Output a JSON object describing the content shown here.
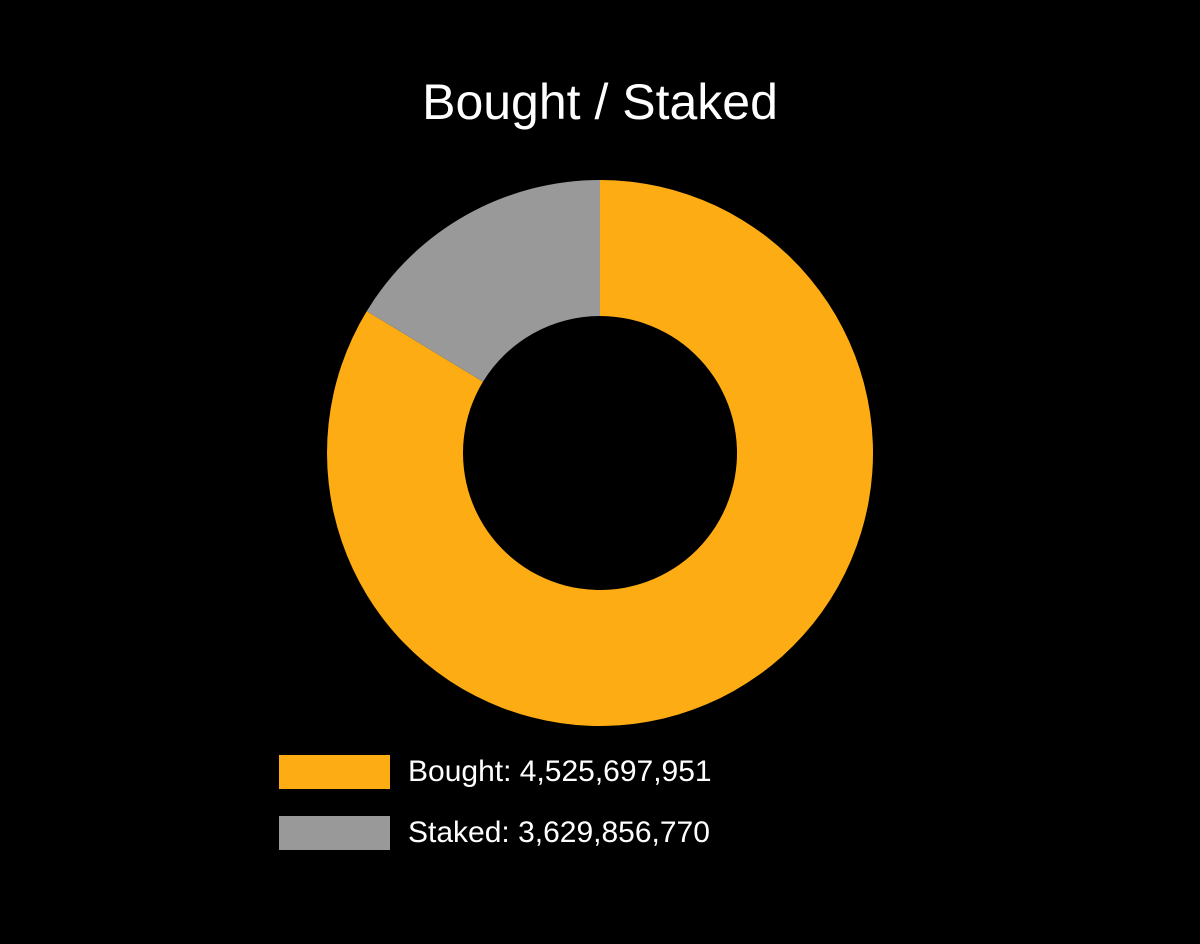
{
  "chart_data": {
    "type": "pie",
    "title": "Bought / Staked",
    "donut": true,
    "slices": [
      {
        "name": "Bought",
        "label": "Bought: 4,525,697,951",
        "value": 4525697951,
        "color": "#FDAD13"
      },
      {
        "name": "Staked",
        "label": "Staked: 3,629,856,770",
        "value": 3629856770,
        "color": "#999999"
      }
    ],
    "legend_placement": "bottom-left"
  }
}
